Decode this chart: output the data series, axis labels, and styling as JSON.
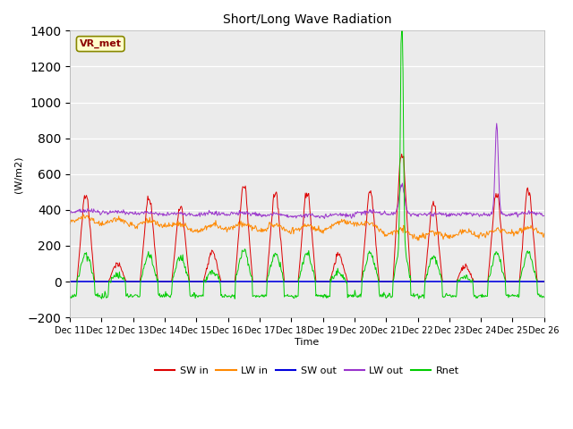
{
  "title": "Short/Long Wave Radiation",
  "ylabel": "(W/m2)",
  "xlabel": "Time",
  "xlim_days": [
    0,
    15
  ],
  "ylim": [
    -200,
    1400
  ],
  "yticks": [
    -200,
    0,
    200,
    400,
    600,
    800,
    1000,
    1200,
    1400
  ],
  "annotation": "VR_met",
  "bg_color": "#ebebeb",
  "colors": {
    "SW_in": "#dd0000",
    "LW_in": "#ff8800",
    "SW_out": "#0000dd",
    "LW_out": "#9933cc",
    "Rnet": "#00cc00"
  },
  "legend_labels": [
    "SW in",
    "LW in",
    "SW out",
    "LW out",
    "Rnet"
  ],
  "n_days": 15,
  "start_day": 11,
  "seed": 42
}
